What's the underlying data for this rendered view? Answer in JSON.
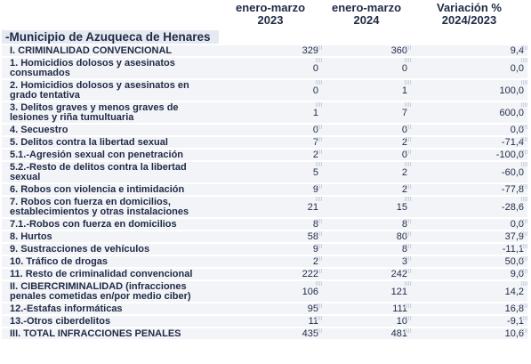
{
  "header": {
    "col_2023": [
      "enero-marzo",
      "2023"
    ],
    "col_2024": [
      "enero-marzo",
      "2024"
    ],
    "col_var": [
      "Variación %",
      "2024/2023"
    ]
  },
  "municipio": "-Municipio de Azuqueca de Henares",
  "rows": [
    {
      "label": "I. CRIMINALIDAD CONVENCIONAL",
      "v2023": "329",
      "v2024": "360",
      "var": "9,4"
    },
    {
      "label": "1. Homicidios dolosos y asesinatos consumados",
      "v2023": "0",
      "v2024": "0",
      "var": "0,0"
    },
    {
      "label": "2. Homicidios dolosos y asesinatos en grado tentativa",
      "v2023": "0",
      "v2024": "1",
      "var": "100,0"
    },
    {
      "label": "3. Delitos graves y menos graves de lesiones y riña tumultuaria",
      "v2023": "1",
      "v2024": "7",
      "var": "600,0"
    },
    {
      "label": "4. Secuestro",
      "v2023": "0",
      "v2024": "0",
      "var": "0,0"
    },
    {
      "label": "5. Delitos contra la libertad sexual",
      "v2023": "7",
      "v2024": "2",
      "var": "-71,4"
    },
    {
      "label": "5.1.-Agresión sexual con penetración",
      "v2023": "2",
      "v2024": "0",
      "var": "-100,0"
    },
    {
      "label": "5.2.-Resto de delitos contra la libertad sexual",
      "v2023": "5",
      "v2024": "2",
      "var": "-60,0"
    },
    {
      "label": "6. Robos con violencia e intimidación",
      "v2023": "9",
      "v2024": "2",
      "var": "-77,8"
    },
    {
      "label": "7. Robos con fuerza en domicilios, establecimientos y otras instalaciones",
      "v2023": "21",
      "v2024": "15",
      "var": "-28,6"
    },
    {
      "label": "7.1.-Robos con fuerza en domicilios",
      "v2023": "8",
      "v2024": "8",
      "var": "0,0"
    },
    {
      "label": "8. Hurtos",
      "v2023": "58",
      "v2024": "80",
      "var": "37,9"
    },
    {
      "label": "9. Sustracciones de vehículos",
      "v2023": "9",
      "v2024": "8",
      "var": "-11,1"
    },
    {
      "label": "10. Tráfico de drogas",
      "v2023": "2",
      "v2024": "3",
      "var": "50,0"
    },
    {
      "label": "11. Resto de criminalidad convencional",
      "v2023": "222",
      "v2024": "242",
      "var": "9,0"
    },
    {
      "label": "II. CIBERCRIMINALIDAD (infracciones penales cometidas en/por medio ciber)",
      "v2023": "106",
      "v2024": "121",
      "var": "14,2"
    },
    {
      "label": "12.-Estafas informáticas",
      "v2023": "95",
      "v2024": "111",
      "var": "16,8"
    },
    {
      "label": "13.-Otros ciberdelitos",
      "v2023": "11",
      "v2024": "10",
      "var": "-9,1"
    },
    {
      "label": "III. TOTAL INFRACCIONES PENALES",
      "v2023": "435",
      "v2024": "481",
      "var": "10,6"
    }
  ]
}
